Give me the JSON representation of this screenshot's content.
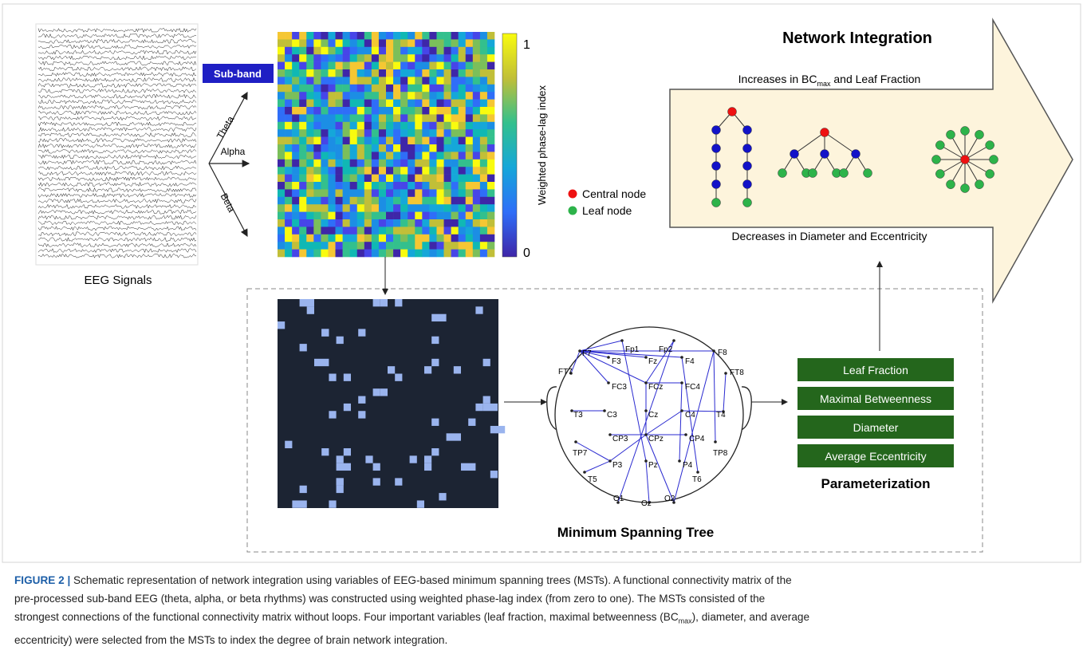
{
  "eeg_label": "EEG Signals",
  "subband": "Sub-band",
  "bands": [
    "Theta",
    "Alpha",
    "Beta"
  ],
  "colorbar": {
    "max": "1",
    "min": "0",
    "label": "Weighted phase-lag index"
  },
  "integration": {
    "title": "Network Integration",
    "increase": {
      "before": "Increases in BC",
      "sub": "max",
      "after": " and Leaf Fraction"
    },
    "decrease": "Decreases in Diameter and Eccentricity",
    "legend": [
      "Central node",
      "Leaf node"
    ]
  },
  "electrodes": [
    "Fp1",
    "Fp2",
    "F7",
    "F3",
    "Fz",
    "F4",
    "F8",
    "FT7",
    "FC3",
    "FCz",
    "FC4",
    "FT8",
    "T3",
    "C3",
    "Cz",
    "C4",
    "T4",
    "CP3",
    "CPz",
    "CP4",
    "TP7",
    "P3",
    "Pz",
    "P4",
    "TP8",
    "T5",
    "T6",
    "O1",
    "Oz",
    "O2"
  ],
  "mst_title": "Minimum Spanning Tree",
  "parameters": [
    "Leaf Fraction",
    "Maximal Betweenness",
    "Diameter",
    "Average Eccentricity"
  ],
  "param_title": "Parameterization",
  "caption": {
    "label": "FIGURE 2 |",
    "line1": " Schematic representation of network integration using variables of EEG-based minimum spanning trees (MSTs). A functional connectivity matrix of the",
    "line2": "pre-processed sub-band EEG (theta, alpha, or beta rhythms) was constructed using weighted phase-lag index (from zero to one). The MSTs consisted of the",
    "line3": {
      "before": "strongest connections of the functional connectivity matrix without loops. Four important variables (leaf fraction, maximal betweenness (BC",
      "sub": "max",
      "after": "), diameter, and average"
    },
    "line4": "eccentricity) were selected from the MSTs to index the degree of brain network integration."
  }
}
